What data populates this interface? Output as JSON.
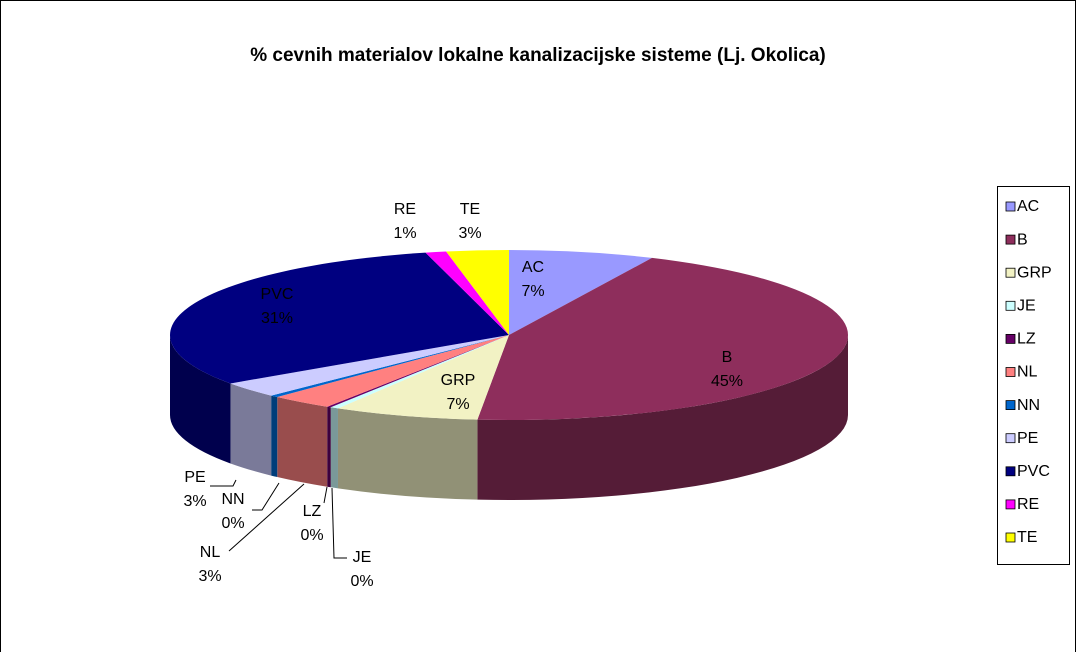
{
  "chart_data": {
    "type": "pie3d",
    "title": "% cevnih materialov lokalne kanalizacijske sisteme (Lj. Okolica)",
    "categories": [
      "AC",
      "B",
      "GRP",
      "JE",
      "LZ",
      "NL",
      "NN",
      "PE",
      "PVC",
      "RE",
      "TE"
    ],
    "values": [
      7,
      45,
      7,
      0.4,
      0.2,
      3,
      0.4,
      3,
      31,
      1,
      3
    ],
    "value_labels": [
      "7%",
      "45%",
      "7%",
      "0%",
      "0%",
      "3%",
      "0%",
      "3%",
      "31%",
      "1%",
      "3%"
    ],
    "colors": [
      "#9999ff",
      "#8e2e5c",
      "#f2f2c4",
      "#ccffff",
      "#660066",
      "#ff8080",
      "#0066cc",
      "#ccccff",
      "#000080",
      "#ff00ff",
      "#ffff00"
    ],
    "legend": "right"
  }
}
